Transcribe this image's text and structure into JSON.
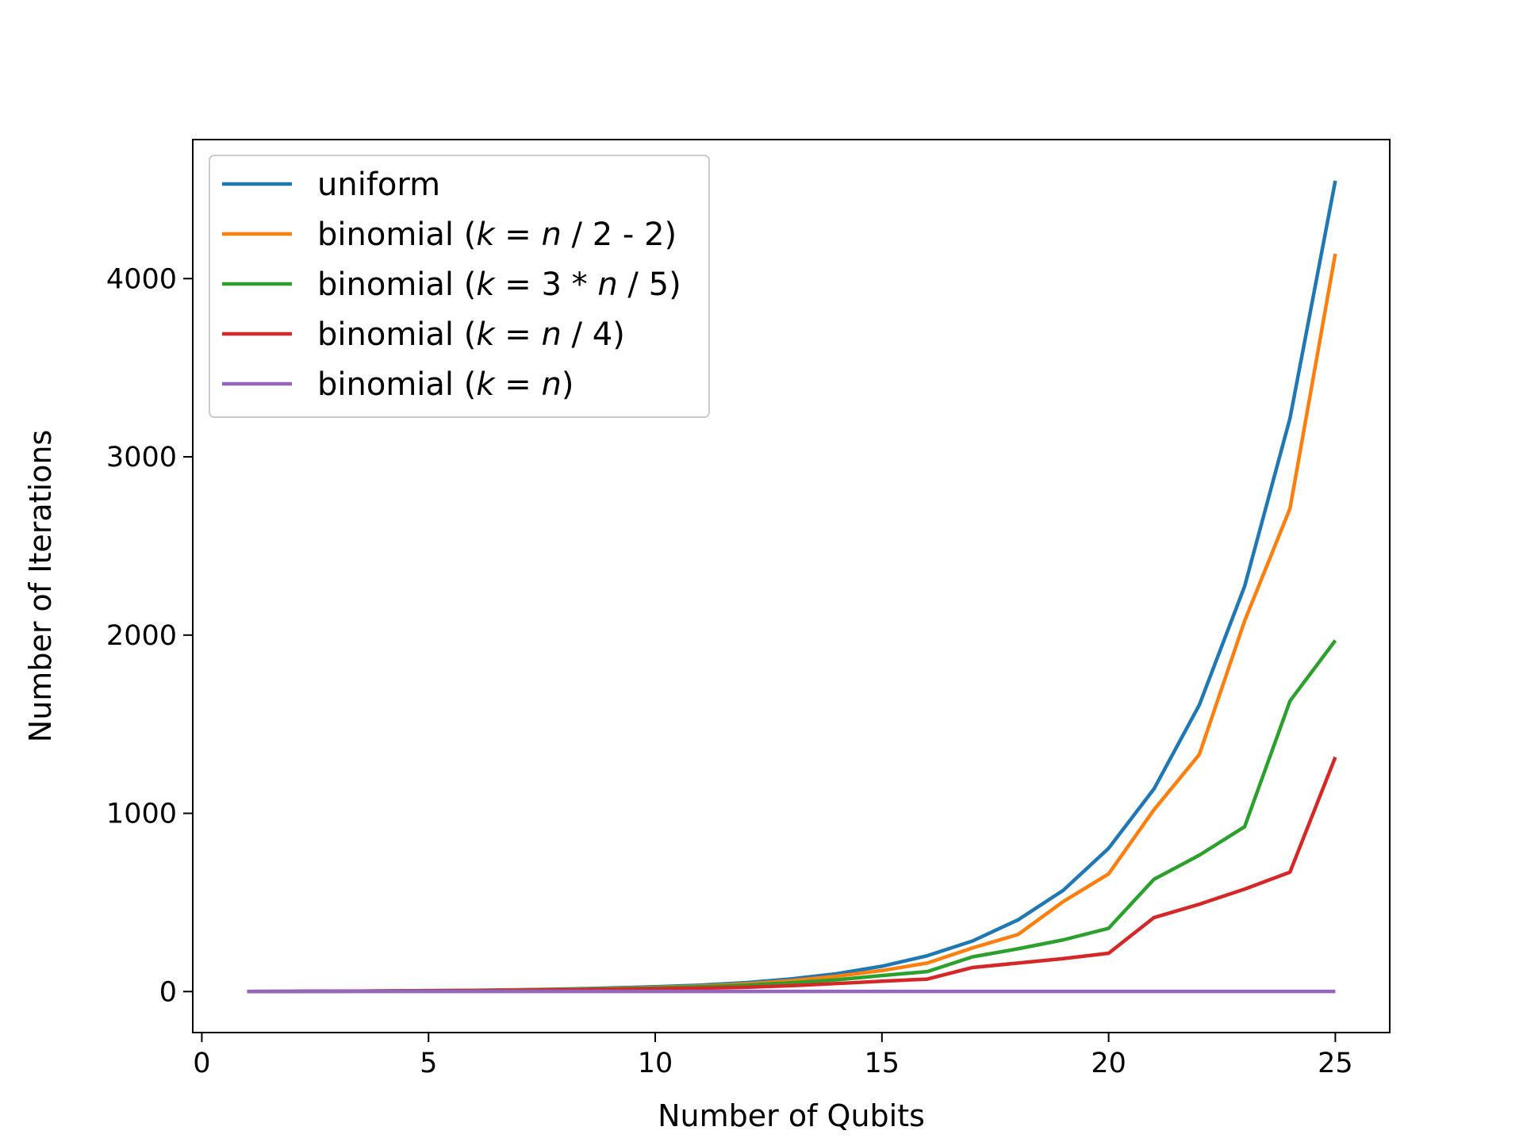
{
  "chart_data": {
    "type": "line",
    "title": "",
    "xlabel": "Number of Qubits",
    "ylabel": "Number of Iterations",
    "xlim": [
      -0.2,
      26.2
    ],
    "ylim": [
      -230,
      4780
    ],
    "xticks": [
      0,
      5,
      10,
      15,
      20,
      25
    ],
    "xtick_labels": [
      "0",
      "5",
      "10",
      "15",
      "20",
      "25"
    ],
    "yticks": [
      0,
      1000,
      2000,
      3000,
      4000
    ],
    "ytick_labels": [
      "0",
      "1000",
      "2000",
      "3000",
      "4000"
    ],
    "grid": false,
    "legend_position": "top-left",
    "x": [
      1,
      2,
      3,
      4,
      5,
      6,
      7,
      8,
      9,
      10,
      11,
      12,
      13,
      14,
      15,
      16,
      17,
      18,
      19,
      20,
      21,
      22,
      23,
      24,
      25
    ],
    "series": [
      {
        "name": "uniform",
        "color": "#1f77b4",
        "label_parts": [
          {
            "t": "uniform",
            "i": false
          }
        ],
        "values": [
          0,
          1,
          2,
          3,
          5,
          7,
          10,
          14,
          20,
          27,
          36,
          50,
          71,
          100,
          142,
          201,
          284,
          402,
          568,
          804,
          1137,
          1608,
          2274,
          3216,
          4549
        ]
      },
      {
        "name": "binomial (k = n / 2 - 2)",
        "color": "#ff7f0e",
        "label_parts": [
          {
            "t": "binomial (",
            "i": false
          },
          {
            "t": "k",
            "i": true
          },
          {
            "t": " = ",
            "i": false
          },
          {
            "t": "n",
            "i": true
          },
          {
            "t": " / 2 - 2)",
            "i": false
          }
        ],
        "values": [
          0,
          1,
          2,
          3,
          4,
          6,
          9,
          12,
          17,
          23,
          31,
          43,
          61,
          86,
          118,
          160,
          245,
          320,
          505,
          660,
          1020,
          1330,
          2080,
          2710,
          4140
        ]
      },
      {
        "name": "binomial (k = 3 * n / 5)",
        "color": "#2ca02c",
        "label_parts": [
          {
            "t": "binomial (",
            "i": false
          },
          {
            "t": "k",
            "i": true
          },
          {
            "t": " = 3 * ",
            "i": false
          },
          {
            "t": "n",
            "i": true
          },
          {
            "t": " / 5)",
            "i": false
          }
        ],
        "values": [
          0,
          1,
          2,
          3,
          4,
          6,
          8,
          11,
          15,
          20,
          27,
          36,
          49,
          66,
          90,
          112,
          195,
          240,
          290,
          355,
          630,
          765,
          925,
          1630,
          1970
        ]
      },
      {
        "name": "binomial (k = n / 4)",
        "color": "#d62728",
        "label_parts": [
          {
            "t": "binomial (",
            "i": false
          },
          {
            "t": "k",
            "i": true
          },
          {
            "t": " = ",
            "i": false
          },
          {
            "t": "n",
            "i": true
          },
          {
            "t": " / 4)",
            "i": false
          }
        ],
        "values": [
          0,
          1,
          2,
          3,
          4,
          5,
          7,
          9,
          12,
          15,
          19,
          24,
          33,
          45,
          58,
          70,
          135,
          160,
          185,
          215,
          415,
          490,
          575,
          670,
          1315
        ]
      },
      {
        "name": "binomial (k = n)",
        "color": "#9467bd",
        "label_parts": [
          {
            "t": "binomial (",
            "i": false
          },
          {
            "t": "k",
            "i": true
          },
          {
            "t": " = ",
            "i": false
          },
          {
            "t": "n",
            "i": true
          },
          {
            "t": ")",
            "i": false
          }
        ],
        "values": [
          1,
          1,
          1,
          1,
          1,
          1,
          1,
          1,
          1,
          1,
          1,
          1,
          1,
          1,
          1,
          1,
          1,
          1,
          1,
          1,
          1,
          1,
          1,
          1,
          1
        ]
      }
    ]
  }
}
